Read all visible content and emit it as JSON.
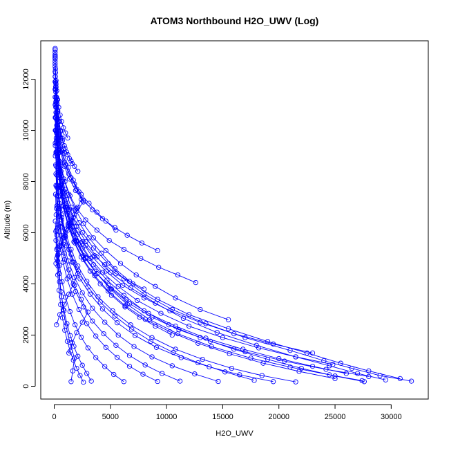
{
  "chart_data": {
    "type": "line",
    "title": "ATOM3 Northbound H2O_UWV (Log)",
    "xlabel": "H2O_UWV",
    "ylabel": "Altitude (m)",
    "xlim": [
      -1200,
      33300
    ],
    "ylim": [
      -500,
      13500
    ],
    "x_ticks": [
      0,
      5000,
      10000,
      15000,
      20000,
      25000,
      30000
    ],
    "y_ticks": [
      0,
      2000,
      4000,
      6000,
      8000,
      10000,
      12000
    ],
    "grid": false,
    "legend": "none",
    "series_color": "#0000ff",
    "series": [
      {
        "x": [
          31800,
          29000,
          26500,
          24000,
          21000,
          17000,
          13500,
          10500,
          8000,
          6200,
          4800,
          3500,
          2500,
          1700,
          1100,
          700,
          450,
          300,
          200,
          130,
          80
        ],
        "y": [
          200,
          420,
          700,
          1000,
          1400,
          1900,
          2450,
          3000,
          3600,
          4200,
          4800,
          5400,
          6000,
          6600,
          7300,
          8000,
          8800,
          9700,
          10600,
          11600,
          12600
        ]
      },
      {
        "x": [
          30800,
          28000,
          25500,
          22500,
          19000,
          15500,
          12000,
          9200,
          7000,
          5400,
          4200,
          3100,
          2200,
          1500,
          950,
          600,
          380,
          250,
          160,
          100
        ],
        "y": [
          300,
          600,
          900,
          1300,
          1750,
          2250,
          2800,
          3400,
          4000,
          4600,
          5200,
          5800,
          6400,
          7000,
          7700,
          8400,
          9200,
          10100,
          11000,
          12100
        ]
      },
      {
        "x": [
          29500,
          27000,
          24500,
          21500,
          18000,
          14500,
          11500,
          9000,
          6800,
          5000,
          3800,
          2800,
          2000,
          1350,
          900,
          550,
          340,
          220,
          140
        ],
        "y": [
          250,
          500,
          800,
          1150,
          1600,
          2100,
          2650,
          3250,
          3850,
          4450,
          5050,
          5650,
          6250,
          6900,
          7600,
          8300,
          9100,
          10000,
          10900
        ]
      },
      {
        "x": [
          27600,
          25000,
          22000,
          19000,
          16000,
          13000,
          10200,
          8000,
          6200,
          4700,
          3500,
          2500,
          1700,
          1150,
          750,
          480,
          300,
          190
        ],
        "y": [
          180,
          400,
          700,
          1050,
          1450,
          1900,
          2400,
          2950,
          3550,
          4150,
          4750,
          5400,
          6050,
          6700,
          7400,
          8150,
          9000,
          9900
        ]
      },
      {
        "x": [
          27400,
          24500,
          21000,
          17500,
          14000,
          11000,
          8500,
          6500,
          5000,
          3800,
          2800,
          2000,
          1400,
          950,
          620,
          400,
          250
        ],
        "y": [
          220,
          450,
          750,
          1100,
          1550,
          2050,
          2600,
          3200,
          3800,
          4400,
          5000,
          5650,
          6300,
          7000,
          7750,
          8550,
          9400
        ]
      },
      {
        "x": [
          26000,
          23000,
          20000,
          16800,
          13500,
          10800,
          8400,
          6400,
          4800,
          3600,
          2600,
          1850,
          1250,
          820,
          530,
          340,
          210
        ],
        "y": [
          500,
          780,
          1080,
          1450,
          1880,
          2350,
          2850,
          3400,
          3950,
          4500,
          5100,
          5700,
          6350,
          7050,
          7800,
          8600,
          9500
        ]
      },
      {
        "x": [
          24800,
          21500,
          18200,
          15000,
          12000,
          9500,
          7400,
          5700,
          4300,
          3200,
          2300,
          1600,
          1100,
          720,
          470,
          300
        ],
        "y": [
          850,
          1150,
          1500,
          1900,
          2350,
          2850,
          3350,
          3900,
          4450,
          5000,
          5600,
          6250,
          6900,
          7600,
          8400,
          9250
        ]
      },
      {
        "x": [
          23000,
          19500,
          16000,
          13000,
          10300,
          8000,
          6100,
          4600,
          3400,
          2500,
          1800,
          1250,
          850,
          560,
          360
        ],
        "y": [
          1300,
          1650,
          2050,
          2500,
          2950,
          3450,
          3950,
          4500,
          5050,
          5650,
          6250,
          6900,
          7550,
          8300,
          9100
        ]
      },
      {
        "x": [
          15500,
          13000,
          10800,
          9000,
          7300,
          5900,
          4600,
          3500,
          2600,
          1900,
          1300,
          850,
          550,
          350,
          220
        ],
        "y": [
          2600,
          3000,
          3450,
          3900,
          4350,
          4800,
          5300,
          5800,
          6350,
          6900,
          7500,
          8100,
          8750,
          9450,
          10200
        ]
      },
      {
        "x": [
          12600,
          11000,
          9300,
          7700,
          6200,
          4900,
          3800,
          2800,
          2000,
          1400,
          950,
          600,
          380,
          240,
          150
        ],
        "y": [
          4050,
          4350,
          4650,
          5000,
          5350,
          5700,
          6100,
          6500,
          6950,
          7450,
          8000,
          8600,
          9250,
          9950,
          10700
        ]
      },
      {
        "x": [
          9200,
          7800,
          6500,
          5400,
          4300,
          3400,
          2600,
          1900,
          1350,
          900,
          580,
          370,
          230,
          140
        ],
        "y": [
          5300,
          5600,
          5900,
          6200,
          6550,
          6900,
          7250,
          7650,
          8100,
          8600,
          9150,
          9750,
          10400,
          11100
        ]
      },
      {
        "x": [
          5500,
          4600,
          3800,
          3100,
          2400,
          1800,
          1300,
          900,
          600,
          380,
          240,
          150,
          90
        ],
        "y": [
          6100,
          6450,
          6800,
          7150,
          7500,
          7900,
          8300,
          8750,
          9250,
          9800,
          10400,
          11100,
          11900
        ]
      },
      {
        "x": [
          21500,
          18500,
          15800,
          13200,
          10800,
          8700,
          6800,
          5200,
          3900,
          2900,
          2100,
          1500,
          1000,
          650,
          420,
          260,
          160
        ],
        "y": [
          170,
          420,
          700,
          1050,
          1450,
          1900,
          2400,
          2950,
          3500,
          4100,
          4700,
          5350,
          6000,
          6700,
          7450,
          8250,
          9100
        ]
      },
      {
        "x": [
          19500,
          16500,
          13800,
          11300,
          9100,
          7200,
          5600,
          4300,
          3200,
          2300,
          1600,
          1100,
          720,
          460,
          290,
          180
        ],
        "y": [
          180,
          450,
          760,
          1120,
          1520,
          1980,
          2480,
          3020,
          3600,
          4200,
          4850,
          5500,
          6200,
          6950,
          7750,
          8600
        ]
      },
      {
        "x": [
          14600,
          12500,
          10500,
          8700,
          7100,
          5700,
          4500,
          3400,
          2500,
          1800,
          1250,
          830,
          540,
          340,
          210,
          130
        ],
        "y": [
          190,
          480,
          800,
          1150,
          1550,
          2000,
          2500,
          3050,
          3650,
          4250,
          4900,
          5550,
          6250,
          7000,
          7800,
          8650
        ]
      },
      {
        "x": [
          11200,
          9600,
          8100,
          6700,
          5500,
          4400,
          3400,
          2600,
          1900,
          1350,
          920,
          600,
          380,
          240,
          150
        ],
        "y": [
          200,
          500,
          830,
          1200,
          1600,
          2050,
          2550,
          3100,
          3700,
          4300,
          4950,
          5600,
          6300,
          7050,
          7850
        ]
      },
      {
        "x": [
          9200,
          7900,
          6700,
          5600,
          4600,
          3700,
          2900,
          2200,
          1600,
          1150,
          780,
          510,
          320,
          200
        ],
        "y": [
          190,
          470,
          780,
          1130,
          1520,
          1960,
          2450,
          3000,
          3600,
          4200,
          4850,
          5500,
          6200,
          6950
        ]
      },
      {
        "x": [
          6200,
          5300,
          4500,
          3700,
          3000,
          2400,
          1850,
          1400,
          1000,
          700,
          470,
          300,
          190
        ],
        "y": [
          180,
          460,
          770,
          1120,
          1500,
          1920,
          2400,
          2920,
          3480,
          4080,
          4720,
          5400,
          6100
        ]
      },
      {
        "x": [
          3300,
          2900,
          2500,
          2100,
          1750,
          1420,
          1130,
          870,
          650,
          470,
          330,
          220,
          140
        ],
        "y": [
          200,
          500,
          820,
          1170,
          1560,
          1980,
          2450,
          2960,
          3500,
          4080,
          4700,
          5350,
          6050
        ]
      },
      {
        "x": [
          1500,
          1650,
          1800,
          1400,
          1050,
          800,
          600,
          450,
          330,
          240,
          170,
          120
        ],
        "y": [
          180,
          600,
          1100,
          1700,
          2350,
          3000,
          3700,
          4400,
          5150,
          5900,
          6700,
          7500
        ]
      },
      {
        "x": [
          2600,
          2300,
          2000,
          1700,
          1420,
          1170,
          940,
          740,
          570,
          430,
          310,
          220,
          150,
          100
        ],
        "y": [
          160,
          420,
          700,
          1020,
          1370,
          1760,
          2190,
          2670,
          3190,
          3750,
          4350,
          5000,
          5700,
          6450
        ]
      },
      {
        "x": [
          17800,
          15200,
          12800,
          10600,
          8600,
          6900,
          5400,
          4100,
          3000,
          2150,
          1500,
          1000,
          650,
          410,
          250,
          160
        ],
        "y": [
          230,
          560,
          920,
          1320,
          1760,
          2230,
          2740,
          3290,
          3880,
          4500,
          5150,
          5850,
          6600,
          7400,
          8250,
          9150
        ]
      },
      {
        "x": [
          25000,
          21800,
          18600,
          15600,
          12800,
          10300,
          8100,
          6300,
          4800,
          3600,
          2600,
          1850,
          1250,
          830,
          540,
          340,
          210
        ],
        "y": [
          300,
          580,
          900,
          1270,
          1680,
          2130,
          2620,
          3150,
          3720,
          4320,
          4950,
          5600,
          6300,
          7050,
          7850,
          8700,
          9600
        ]
      },
      {
        "x": [
          28000,
          24200,
          20500,
          17000,
          13900,
          11100,
          8700,
          6700,
          5100,
          3800,
          2800,
          2000,
          1400,
          950,
          620,
          400,
          250,
          160
        ],
        "y": [
          380,
          660,
          980,
          1350,
          1760,
          2210,
          2700,
          3230,
          3800,
          4400,
          5030,
          5690,
          6380,
          7110,
          7890,
          8720,
          9600,
          10500
        ]
      },
      {
        "x": [
          1300,
          1600,
          2000,
          2500,
          3000,
          2400,
          1800,
          1300,
          900,
          600,
          380,
          240,
          150
        ],
        "y": [
          1300,
          1700,
          2100,
          2500,
          2900,
          3400,
          3950,
          4550,
          5200,
          5900,
          6650,
          7450,
          8300
        ]
      },
      {
        "x": [
          200,
          500,
          900,
          1300,
          1700,
          2100,
          1700,
          1300,
          950,
          650,
          430,
          270,
          170,
          100
        ],
        "y": [
          2400,
          2800,
          3200,
          3600,
          4000,
          4400,
          4850,
          5350,
          5900,
          6500,
          7150,
          7850,
          8600,
          9400
        ]
      },
      {
        "x": [
          300,
          450,
          650,
          900,
          1200,
          1500,
          1800,
          2100,
          2400,
          2000,
          1500,
          1050,
          700,
          450,
          280,
          170,
          110
        ],
        "y": [
          4900,
          5200,
          5500,
          5800,
          6100,
          6400,
          6700,
          7000,
          7300,
          7700,
          8150,
          8650,
          9200,
          9800,
          10450,
          11150,
          11900
        ]
      },
      {
        "x": [
          150,
          300,
          500,
          800,
          1100,
          1500,
          2000,
          2600,
          2200,
          1700,
          1250,
          880,
          590,
          380,
          240,
          150
        ],
        "y": [
          4800,
          5100,
          5450,
          5800,
          6150,
          6500,
          6850,
          7200,
          7600,
          8050,
          8550,
          9100,
          9700,
          10350,
          11050,
          11800
        ]
      },
      {
        "x": [
          2100,
          1800,
          1500,
          1200,
          950,
          730,
          550,
          400,
          290,
          200,
          140
        ],
        "y": [
          8400,
          8600,
          8800,
          9050,
          9300,
          9600,
          9950,
          10350,
          10800,
          11300,
          11850
        ]
      },
      {
        "x": [
          1600,
          1350,
          1100,
          900,
          720,
          560,
          430,
          320,
          230,
          160,
          110,
          80
        ],
        "y": [
          8700,
          8900,
          9150,
          9400,
          9700,
          10000,
          10350,
          10750,
          11200,
          11700,
          12250,
          12800
        ]
      },
      {
        "x": [
          1200,
          1000,
          820,
          660,
          520,
          400,
          300,
          220,
          160,
          110,
          80
        ],
        "y": [
          9700,
          9900,
          10100,
          10350,
          10600,
          10900,
          11200,
          11550,
          11950,
          12400,
          12900
        ]
      },
      {
        "x": [
          100,
          100,
          95,
          90,
          85,
          80,
          80,
          80,
          80,
          80,
          80,
          80,
          80,
          80,
          80,
          80,
          80
        ],
        "y": [
          9000,
          9500,
          10000,
          10500,
          11000,
          11300,
          11600,
          11900,
          12100,
          12300,
          12500,
          12700,
          12850,
          12950,
          13050,
          13150,
          13200
        ]
      },
      {
        "x": [
          400,
          380,
          350,
          320,
          290,
          260,
          230,
          200,
          180,
          160,
          140,
          120
        ],
        "y": [
          9500,
          9700,
          9900,
          10100,
          10300,
          10500,
          10700,
          10900,
          11100,
          11300,
          11500,
          11700
        ]
      },
      {
        "x": [
          8000,
          6700,
          5500,
          4500,
          3600,
          2800,
          2100,
          1500,
          1050,
          700,
          450,
          290,
          180,
          110
        ],
        "y": [
          3800,
          4100,
          4400,
          4750,
          5100,
          5500,
          5950,
          6450,
          7000,
          7600,
          8250,
          8950,
          9700,
          10500
        ]
      },
      {
        "x": [
          10500,
          9000,
          7600,
          6300,
          5100,
          4100,
          3200,
          2400,
          1750,
          1250,
          850,
          550,
          350,
          220,
          140
        ],
        "y": [
          2000,
          2350,
          2700,
          3100,
          3550,
          4000,
          4500,
          5050,
          5650,
          6250,
          6900,
          7600,
          8350,
          9150,
          10000
        ]
      }
    ]
  }
}
